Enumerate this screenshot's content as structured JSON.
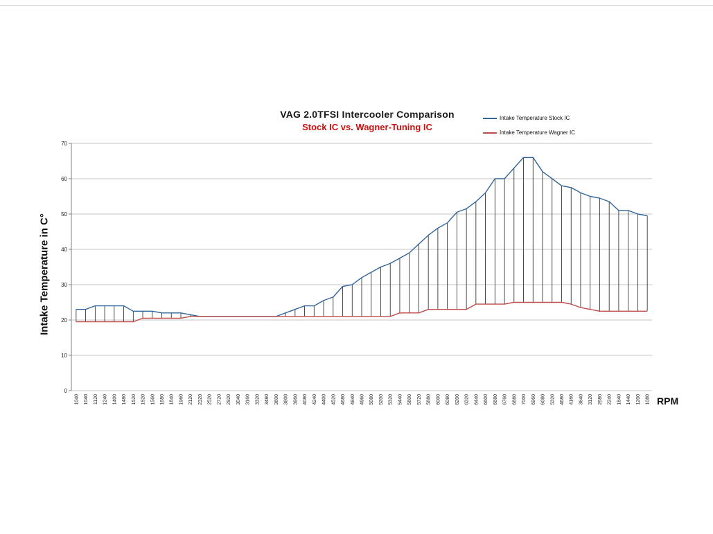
{
  "chart": {
    "title": "VAG 2.0TFSI Intercooler Comparison",
    "subtitle": "Stock IC vs. Wagner-Tuning IC",
    "subtitle_color": "#cc1111",
    "x_axis_label": "RPM",
    "y_axis_label": "Intake Temperature in C°",
    "legend": [
      {
        "label": "Intake Temperature Stock IC",
        "color": "#31659B"
      },
      {
        "label": "Intake Temperature Wagner IC",
        "color": "#BE4B48"
      }
    ]
  },
  "chart_data": {
    "type": "line",
    "title": "VAG 2.0TFSI Intercooler Comparison",
    "subtitle": "Stock IC vs. Wagner-Tuning IC",
    "xlabel": "RPM",
    "ylabel": "Intake Temperature in C°",
    "ylim": [
      0,
      70
    ],
    "y_ticks": [
      0,
      10,
      20,
      30,
      40,
      50,
      60,
      70
    ],
    "grid": true,
    "high_low_lines": true,
    "legend_position": "top-right",
    "categories": [
      "1040",
      "1040",
      "1120",
      "1240",
      "1400",
      "1480",
      "1520",
      "1520",
      "1560",
      "1680",
      "1840",
      "1960",
      "2120",
      "2320",
      "2520",
      "2720",
      "2920",
      "3040",
      "3160",
      "3320",
      "3480",
      "3600",
      "3800",
      "3960",
      "4080",
      "4240",
      "4400",
      "4520",
      "4680",
      "4840",
      "4960",
      "5080",
      "5200",
      "5320",
      "5440",
      "5600",
      "5720",
      "5880",
      "6000",
      "6080",
      "6200",
      "6320",
      "6440",
      "6600",
      "6680",
      "6760",
      "6880",
      "7000",
      "6960",
      "6080",
      "5320",
      "4680",
      "4160",
      "3640",
      "3120",
      "2680",
      "2240",
      "1840",
      "1440",
      "1200",
      "1080"
    ],
    "series": [
      {
        "name": "Intake Temperature Stock IC",
        "color": "#31659B",
        "values": [
          23,
          23,
          24,
          24,
          24,
          24,
          22.5,
          22.5,
          22.5,
          22,
          22,
          22,
          21.5,
          21,
          21,
          21,
          21,
          21,
          21,
          21,
          21,
          21,
          22,
          23,
          24,
          24,
          25.5,
          26.5,
          29.5,
          30,
          32,
          33.5,
          35,
          36,
          37.5,
          39,
          41.5,
          44,
          46,
          47.5,
          50.5,
          51.5,
          53.5,
          56,
          60,
          60,
          63,
          66,
          66,
          62,
          60,
          58,
          57.5,
          56,
          55,
          54.5,
          53.5,
          51,
          51,
          50,
          49.5
        ]
      },
      {
        "name": "Intake Temperature Wagner IC",
        "color": "#BE4B48",
        "values": [
          19.5,
          19.5,
          19.5,
          19.5,
          19.5,
          19.5,
          19.5,
          20.5,
          20.5,
          20.5,
          20.5,
          20.5,
          21,
          21,
          21,
          21,
          21,
          21,
          21,
          21,
          21,
          21,
          21,
          21,
          21,
          21,
          21,
          21,
          21,
          21,
          21,
          21,
          21,
          21,
          22,
          22,
          22,
          23,
          23,
          23,
          23,
          23,
          24.5,
          24.5,
          24.5,
          24.5,
          25,
          25,
          25,
          25,
          25,
          25,
          24.5,
          23.5,
          23,
          22.5,
          22.5,
          22.5,
          22.5,
          22.5,
          22.5
        ]
      }
    ],
    "styles": {
      "gridline_color": "#c6c6c6",
      "axis_color": "#7f7f7f",
      "drop_line_color": "#1f1f1f",
      "tick_label_color": "#262626"
    }
  }
}
